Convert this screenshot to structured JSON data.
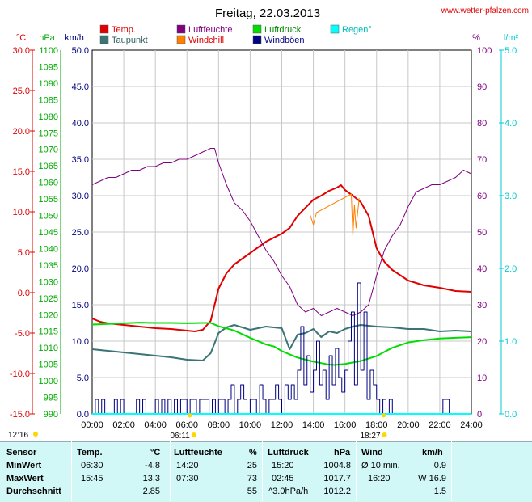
{
  "title": "Freitag, 22.03.2013",
  "site": "www.wetter-pfalzen.com",
  "colors": {
    "temp": "#e00000",
    "dew": "#3a7474",
    "humidity": "#800080",
    "windchill": "#ff8000",
    "pressure": "#00dd00",
    "gust": "#000080",
    "rain": "#00dddd",
    "tempAxis": "#e00000",
    "pressureAxis": "#00aa00",
    "windAxis": "#000080",
    "humAxis": "#800080",
    "rainAxis": "#00cccc"
  },
  "legend": [
    {
      "label": "Temp.",
      "color": "#e00000"
    },
    {
      "label": "Luftfeuchte",
      "color": "#800080"
    },
    {
      "label": "Luftdruck",
      "color": "#00dd00"
    },
    {
      "label": "Regen°",
      "color": "#00ffff"
    },
    {
      "label": "Taupunkt",
      "color": "#3a7474"
    },
    {
      "label": "Windchill",
      "color": "#ff8000"
    },
    {
      "label": "Windböen",
      "color": "#000080"
    }
  ],
  "chart_data": {
    "type": "line",
    "title": "Freitag, 22.03.2013",
    "axes": {
      "temp": {
        "unit": "°C",
        "range": [
          -15,
          30
        ],
        "ticks": [
          "30.0",
          "25.0",
          "20.0",
          "15.0",
          "10.0",
          "5.0",
          "0.0",
          "-5.0",
          "-10.0",
          "-15.0"
        ]
      },
      "pressure": {
        "unit": "hPa",
        "range": [
          990,
          1100
        ],
        "ticks": [
          "1100",
          "1095",
          "1090",
          "1085",
          "1080",
          "1075",
          "1070",
          "1065",
          "1060",
          "1055",
          "1050",
          "1045",
          "1040",
          "1035",
          "1030",
          "1025",
          "1020",
          "1015",
          "1010",
          "1005",
          "1000",
          "995",
          "990"
        ]
      },
      "wind": {
        "unit": "km/h",
        "range": [
          0,
          50
        ],
        "ticks": [
          "50.0",
          "45.0",
          "40.0",
          "35.0",
          "30.0",
          "25.0",
          "20.0",
          "15.0",
          "10.0",
          "5.0",
          "0.0"
        ]
      },
      "humidity": {
        "unit": "%",
        "range": [
          0,
          100
        ],
        "ticks": [
          "100",
          "90",
          "80",
          "70",
          "60",
          "50",
          "40",
          "30",
          "20",
          "10",
          "0"
        ]
      },
      "rain": {
        "unit": "l/m²",
        "range": [
          0,
          5
        ],
        "ticks": [
          "5.0",
          "4.0",
          "3.0",
          "2.0",
          "1.0",
          "0.0"
        ]
      },
      "x": {
        "range": [
          0,
          24
        ],
        "ticks": [
          "00:00",
          "02:00",
          "04:00",
          "06:00",
          "08:00",
          "10:00",
          "12:00",
          "14:00",
          "16:00",
          "18:00",
          "20:00",
          "22:00",
          "24:00"
        ]
      }
    },
    "grid": true,
    "sun": {
      "rise_label": "06:11",
      "set_label": "18:27",
      "rise_h": 6.18,
      "set_h": 18.45,
      "moon_label": "12:16"
    },
    "series": [
      {
        "name": "Temp.",
        "axis": "temp",
        "color": "#e00000",
        "x": [
          0,
          0.5,
          1,
          2,
          3,
          4,
          5,
          6,
          6.5,
          7,
          7.5,
          8,
          8.5,
          9,
          10,
          11,
          12,
          12.5,
          13,
          13.5,
          14,
          14.5,
          15,
          15.5,
          15.75,
          16,
          16.5,
          17,
          17.5,
          18,
          18.5,
          19,
          20,
          21,
          22,
          23,
          24
        ],
        "y": [
          -3.2,
          -3.6,
          -3.8,
          -4.0,
          -4.2,
          -4.4,
          -4.5,
          -4.7,
          -4.8,
          -4.6,
          -3.5,
          0.5,
          2.4,
          3.5,
          4.9,
          6.3,
          7.3,
          8.0,
          9.5,
          10.5,
          11.5,
          12.0,
          12.6,
          13.0,
          13.3,
          12.7,
          12.0,
          11.2,
          9.5,
          5.5,
          3.8,
          2.8,
          1.5,
          0.9,
          0.6,
          0.2,
          0.1
        ]
      },
      {
        "name": "Windchill",
        "axis": "temp",
        "color": "#ff8000",
        "x": [
          13.8,
          14.0,
          14.2,
          16.4,
          16.5,
          16.6,
          16.7,
          16.9
        ],
        "y": [
          9.6,
          8.4,
          9.9,
          12.2,
          7.0,
          10.8,
          8.0,
          11.7
        ]
      },
      {
        "name": "Taupunkt",
        "axis": "temp",
        "color": "#3a7474",
        "x": [
          0,
          1,
          2,
          3,
          4,
          5,
          6,
          7,
          7.5,
          8,
          8.5,
          9,
          10,
          11,
          12,
          12.5,
          13,
          13.5,
          14,
          14.5,
          15,
          15.5,
          16,
          16.5,
          17,
          17.5,
          18,
          19,
          20,
          21,
          22,
          23,
          24
        ],
        "y": [
          -7.0,
          -7.2,
          -7.4,
          -7.6,
          -7.8,
          -8.0,
          -8.3,
          -8.4,
          -7.5,
          -5.0,
          -4.3,
          -4.0,
          -4.6,
          -4.2,
          -4.4,
          -7.0,
          -5.2,
          -5.0,
          -4.5,
          -5.5,
          -4.8,
          -5.0,
          -4.5,
          -4.2,
          -4.0,
          -4.1,
          -4.2,
          -4.3,
          -4.5,
          -4.5,
          -4.8,
          -4.7,
          -4.8
        ]
      },
      {
        "name": "Luftfeuchte",
        "axis": "humidity",
        "color": "#800080",
        "x": [
          0,
          0.5,
          1,
          1.5,
          2,
          2.5,
          3,
          3.5,
          4,
          4.5,
          5,
          5.5,
          6,
          6.5,
          7,
          7.5,
          7.75,
          8,
          8.5,
          9,
          9.5,
          10,
          10.5,
          11,
          11.5,
          12,
          12.5,
          13,
          13.5,
          14,
          14.5,
          15,
          15.5,
          16,
          16.5,
          17,
          17.5,
          18,
          18.5,
          19,
          19.5,
          20,
          20.5,
          21,
          21.5,
          22,
          22.5,
          23,
          23.5,
          24
        ],
        "y": [
          63,
          64,
          65,
          65,
          66,
          67,
          67,
          68,
          68,
          69,
          69,
          70,
          70,
          71,
          72,
          73,
          73,
          69,
          63,
          58,
          56,
          53,
          49,
          45,
          42,
          38,
          35,
          30,
          28,
          29,
          27,
          28,
          29,
          28,
          27,
          28,
          30,
          38,
          45,
          49,
          52,
          57,
          61,
          62,
          63,
          63,
          64,
          65,
          67,
          66
        ]
      },
      {
        "name": "Luftdruck",
        "axis": "pressure",
        "color": "#00dd00",
        "x": [
          0,
          1,
          2,
          3,
          4,
          5,
          6,
          7,
          7.5,
          8,
          9,
          10,
          11,
          11.5,
          12,
          13,
          14,
          15,
          15.33,
          16,
          17,
          18,
          19,
          20,
          21,
          22,
          23,
          24
        ],
        "y": [
          1017.0,
          1017.2,
          1017.4,
          1017.6,
          1017.5,
          1017.5,
          1017.4,
          1017.5,
          1017.5,
          1016.5,
          1015.2,
          1013.0,
          1011.0,
          1010.4,
          1009.0,
          1007.0,
          1005.8,
          1004.9,
          1004.8,
          1005.1,
          1006.0,
          1007.5,
          1010.0,
          1011.6,
          1012.3,
          1012.8,
          1013.0,
          1013.2
        ]
      },
      {
        "name": "Windböen",
        "axis": "wind",
        "color": "#000080",
        "x": [
          0,
          0.2,
          0.4,
          0.6,
          0.8,
          1.0,
          1.2,
          1.4,
          1.6,
          1.8,
          2.0,
          2.2,
          2.4,
          2.6,
          2.8,
          3.0,
          3.2,
          3.4,
          3.6,
          3.8,
          4.0,
          4.2,
          4.4,
          4.6,
          4.8,
          5.0,
          5.2,
          5.4,
          5.6,
          5.8,
          6.0,
          6.2,
          6.4,
          6.6,
          6.8,
          7.0,
          7.2,
          7.4,
          7.6,
          7.8,
          8.0,
          8.2,
          8.4,
          8.6,
          8.8,
          9.0,
          9.2,
          9.4,
          9.6,
          9.8,
          10.0,
          10.2,
          10.4,
          10.6,
          10.8,
          11.0,
          11.2,
          11.4,
          11.6,
          11.8,
          12.0,
          12.2,
          12.4,
          12.6,
          12.8,
          13.0,
          13.2,
          13.4,
          13.6,
          13.8,
          14.0,
          14.2,
          14.4,
          14.6,
          14.8,
          15.0,
          15.2,
          15.4,
          15.6,
          15.8,
          16.0,
          16.2,
          16.4,
          16.6,
          16.8,
          17.0,
          17.2,
          17.4,
          17.6,
          17.8,
          18.0,
          18.2,
          18.4,
          18.6,
          18.8,
          19.0,
          19.2,
          19.4,
          19.6,
          19.8,
          20.0,
          20.2,
          20.4,
          20.6,
          20.8,
          21.0,
          21.2,
          21.4,
          21.6,
          21.8,
          22.0,
          22.2,
          22.4,
          22.6,
          22.8,
          23.0,
          23.2,
          23.4,
          23.6,
          23.8,
          24.0
        ],
        "y": [
          0,
          2,
          0,
          2,
          0,
          0,
          0,
          2,
          0,
          2,
          0,
          0,
          0,
          0,
          2,
          0,
          2,
          0,
          0,
          0,
          2,
          0,
          2,
          0,
          2,
          0,
          2,
          0,
          2,
          2,
          0,
          2,
          2,
          0,
          2,
          2,
          2,
          0,
          2,
          0,
          2,
          2,
          0,
          2,
          4,
          0,
          2,
          4,
          2,
          0,
          2,
          2,
          0,
          4,
          2,
          0,
          2,
          2,
          4,
          2,
          0,
          4,
          2,
          4,
          2,
          6,
          12,
          4,
          8,
          3,
          6,
          10,
          4,
          6,
          2,
          8,
          4,
          9,
          5,
          3,
          6,
          10,
          14,
          4,
          18,
          6,
          14,
          2,
          6,
          4,
          2,
          0,
          2,
          0,
          2,
          0,
          0,
          0,
          0,
          0,
          0,
          0,
          0,
          0,
          0,
          0,
          0,
          0,
          0,
          0,
          0,
          2,
          2,
          0,
          0,
          0,
          0,
          0,
          0,
          0,
          0
        ]
      },
      {
        "name": "Regen°",
        "axis": "rain",
        "color": "#00ffff",
        "x": [
          0,
          24
        ],
        "y": [
          0,
          0
        ]
      }
    ]
  },
  "stats": {
    "headers": {
      "sensor": "Sensor",
      "temp": "Temp.",
      "temp_unit": "°C",
      "hum": "Luftfeuchte",
      "hum_unit": "%",
      "press": "Luftdruck",
      "press_unit": "hPa",
      "wind": "Wind",
      "wind_unit": "km/h"
    },
    "min": {
      "label": "MinWert",
      "temp_time": "06:30",
      "temp_val": "-4.8",
      "hum_time": "14:20",
      "hum_val": "25",
      "press_time": "15:20",
      "press_val": "1004.8",
      "wind_time": "Ø 10 min.",
      "wind_val": "0.9"
    },
    "max": {
      "label": "MaxWert",
      "temp_time": "15:45",
      "temp_val": "13.3",
      "hum_time": "07:30",
      "hum_val": "73",
      "press_time": "02:45",
      "press_val": "1017.7",
      "wind_time": "16:20",
      "wind_val": "W 16.9"
    },
    "avg": {
      "label": "Durchschnitt",
      "temp_time": "",
      "temp_val": "2.85",
      "hum_time": "",
      "hum_val": "55",
      "press_time": "^3.0hPa/h",
      "press_val": "1012.2",
      "wind_time": "",
      "wind_val": "1.5"
    }
  }
}
